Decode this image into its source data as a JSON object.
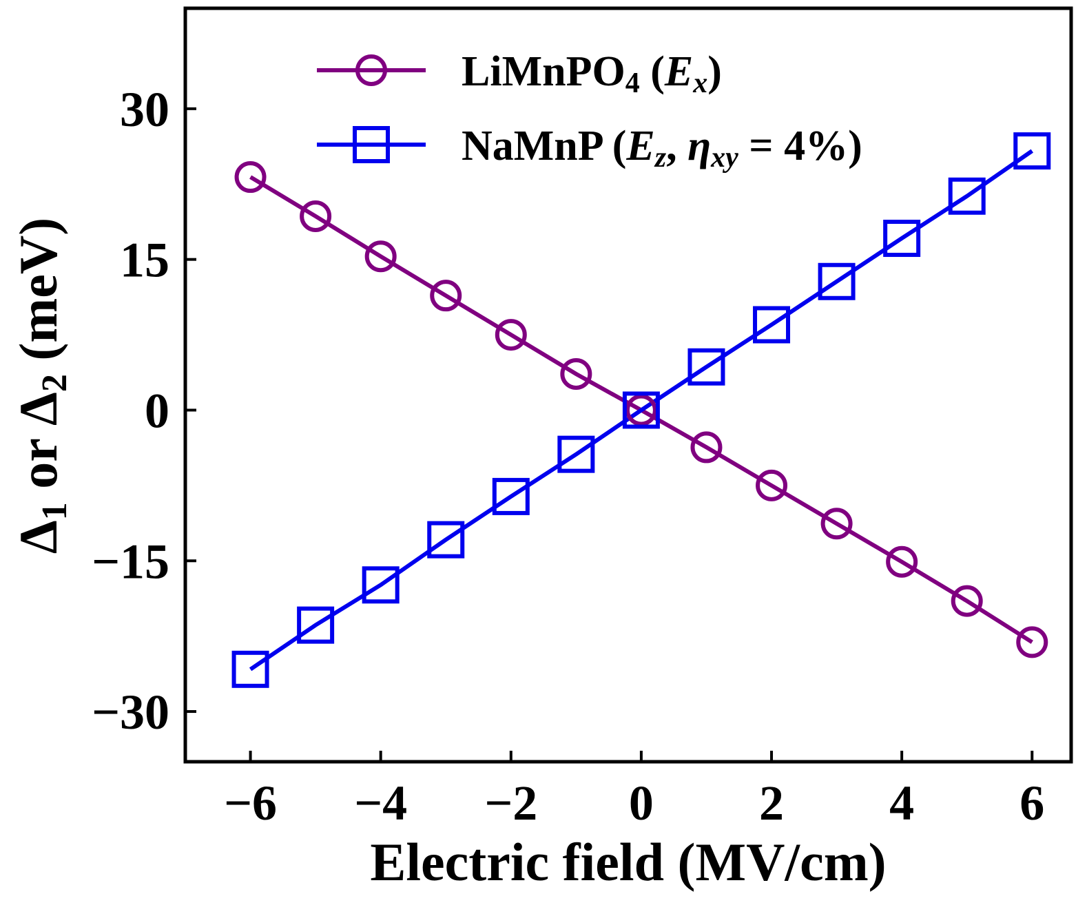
{
  "chart_data": {
    "type": "line",
    "xlabel": "Electric field (MV/cm)",
    "ylabel": {
      "delta1": "Δ",
      "sub1": "1",
      "or": " or ",
      "delta2": "Δ",
      "sub2": "2",
      "unit": " (meV)"
    },
    "xlim": [
      -7,
      6.6
    ],
    "ylim": [
      -35,
      40
    ],
    "xticks": [
      -6,
      -4,
      -2,
      0,
      2,
      4,
      6
    ],
    "xtick_labels": [
      "−6",
      "−4",
      "−2",
      "0",
      "2",
      "4",
      "6"
    ],
    "yticks": [
      -30,
      -15,
      0,
      15,
      30
    ],
    "ytick_labels": [
      "−30",
      "−15",
      "0",
      "15",
      "30"
    ],
    "grid": false,
    "legend_position": "top",
    "x": [
      -6,
      -5,
      -4,
      -3,
      -2,
      -1,
      0,
      1,
      2,
      3,
      4,
      5,
      6
    ],
    "series": [
      {
        "name": "LiMnPO4 (Ex)",
        "legend": {
          "main": "LiMnPO",
          "sub": "4",
          "open": " (",
          "ital": "E",
          "ital_sub": "x",
          "close": ")"
        },
        "marker": "circle",
        "color": "#800080",
        "values": [
          23.2,
          19.3,
          15.3,
          11.4,
          7.5,
          3.6,
          0.0,
          -3.7,
          -7.5,
          -11.3,
          -15.1,
          -19.0,
          -23.1
        ]
      },
      {
        "name": "NaMnP (Ez, ηxy = 4%)",
        "legend": {
          "main": "NaMnP (",
          "ital": "E",
          "ital_sub": "z",
          "comma": ", ",
          "eta": "η",
          "eta_sub": "xy",
          "eq": " = 4%)"
        },
        "marker": "square",
        "color": "#0000ee",
        "values": [
          -25.8,
          -21.4,
          -17.4,
          -12.9,
          -8.6,
          -4.4,
          0.0,
          4.3,
          8.5,
          12.8,
          17.1,
          21.3,
          25.8
        ]
      }
    ]
  }
}
